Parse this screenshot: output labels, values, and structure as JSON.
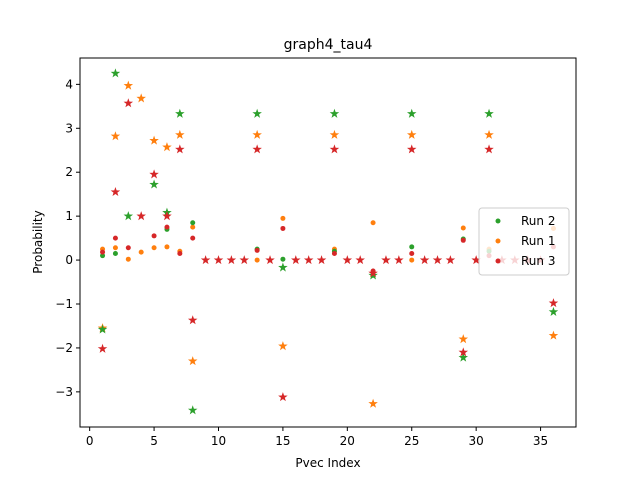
{
  "chart_data": {
    "type": "scatter",
    "title": "graph4_tau4",
    "xlabel": "Pvec Index",
    "ylabel": "Probability",
    "xlim": [
      -0.75,
      37.75
    ],
    "ylim": [
      -3.8,
      4.6
    ],
    "xticks": [
      0,
      5,
      10,
      15,
      20,
      25,
      30,
      35
    ],
    "yticks": [
      -3,
      -2,
      -1,
      0,
      1,
      2,
      3,
      4
    ],
    "xtick_labels": [
      "0",
      "5",
      "10",
      "15",
      "20",
      "25",
      "30",
      "35"
    ],
    "ytick_labels": [
      "−3",
      "−2",
      "−1",
      "0",
      "1",
      "2",
      "3",
      "4"
    ],
    "grid": false,
    "legend_position": "right",
    "series": [
      {
        "name": "Run 1",
        "color": "#ff7f0e",
        "dots": [
          [
            1,
            0.25
          ],
          [
            2,
            0.28
          ],
          [
            3,
            0.02
          ],
          [
            4,
            0.18
          ],
          [
            5,
            0.28
          ],
          [
            6,
            0.3
          ],
          [
            7,
            0.2
          ],
          [
            8,
            0.75
          ],
          [
            13,
            0.0
          ],
          [
            15,
            0.95
          ],
          [
            19,
            0.25
          ],
          [
            22,
            0.85
          ],
          [
            25,
            0.0
          ],
          [
            29,
            0.73
          ],
          [
            31,
            0.25
          ],
          [
            36,
            0.72
          ]
        ],
        "stars": [
          [
            1,
            -1.55
          ],
          [
            2,
            2.82
          ],
          [
            3,
            3.97
          ],
          [
            4,
            3.68
          ],
          [
            5,
            2.72
          ],
          [
            6,
            2.57
          ],
          [
            7,
            2.85
          ],
          [
            8,
            -2.3
          ],
          [
            13,
            2.85
          ],
          [
            15,
            -1.96
          ],
          [
            19,
            2.85
          ],
          [
            22,
            -3.27
          ],
          [
            25,
            2.85
          ],
          [
            29,
            -1.8
          ],
          [
            31,
            2.85
          ],
          [
            36,
            -1.72
          ]
        ]
      },
      {
        "name": "Run 2",
        "color": "#2ca02c",
        "dots": [
          [
            1,
            0.1
          ],
          [
            2,
            0.15
          ],
          [
            6,
            0.7
          ],
          [
            8,
            0.85
          ],
          [
            13,
            0.25
          ],
          [
            15,
            0.02
          ],
          [
            19,
            0.2
          ],
          [
            25,
            0.3
          ],
          [
            29,
            0.48
          ],
          [
            31,
            0.2
          ]
        ],
        "stars": [
          [
            1,
            -1.58
          ],
          [
            2,
            4.25
          ],
          [
            3,
            1.0
          ],
          [
            5,
            1.72
          ],
          [
            6,
            1.08
          ],
          [
            7,
            3.33
          ],
          [
            8,
            -3.42
          ],
          [
            13,
            3.33
          ],
          [
            15,
            -0.17
          ],
          [
            19,
            3.33
          ],
          [
            22,
            -0.35
          ],
          [
            25,
            3.33
          ],
          [
            29,
            -2.22
          ],
          [
            31,
            3.33
          ],
          [
            36,
            -1.18
          ]
        ]
      },
      {
        "name": "Run 3",
        "color": "#d62728",
        "dots": [
          [
            1,
            0.18
          ],
          [
            2,
            0.5
          ],
          [
            3,
            0.28
          ],
          [
            5,
            0.55
          ],
          [
            6,
            0.75
          ],
          [
            7,
            0.15
          ],
          [
            8,
            0.5
          ],
          [
            13,
            0.22
          ],
          [
            15,
            0.72
          ],
          [
            19,
            0.15
          ],
          [
            22,
            -0.25
          ],
          [
            25,
            0.15
          ],
          [
            29,
            0.45
          ],
          [
            31,
            0.1
          ],
          [
            36,
            0.3
          ]
        ],
        "stars": [
          [
            1,
            -2.02
          ],
          [
            2,
            1.55
          ],
          [
            3,
            3.57
          ],
          [
            4,
            1.0
          ],
          [
            5,
            1.95
          ],
          [
            6,
            1.0
          ],
          [
            7,
            2.52
          ],
          [
            8,
            -1.37
          ],
          [
            9,
            0
          ],
          [
            10,
            0
          ],
          [
            11,
            0
          ],
          [
            12,
            0
          ],
          [
            13,
            2.52
          ],
          [
            14,
            0
          ],
          [
            15,
            -3.12
          ],
          [
            16,
            0
          ],
          [
            17,
            0
          ],
          [
            18,
            0
          ],
          [
            19,
            2.52
          ],
          [
            20,
            0
          ],
          [
            21,
            0
          ],
          [
            22,
            -0.3
          ],
          [
            23,
            0
          ],
          [
            24,
            0
          ],
          [
            25,
            2.52
          ],
          [
            26,
            0
          ],
          [
            27,
            0
          ],
          [
            28,
            0
          ],
          [
            29,
            -2.1
          ],
          [
            30,
            0
          ],
          [
            31,
            2.52
          ],
          [
            32,
            0
          ],
          [
            33,
            0
          ],
          [
            34,
            0
          ],
          [
            35,
            0
          ],
          [
            36,
            -0.98
          ]
        ]
      }
    ],
    "legend": [
      {
        "label": "Run 2",
        "color": "#2ca02c"
      },
      {
        "label": "Run 1",
        "color": "#ff7f0e"
      },
      {
        "label": "Run 3",
        "color": "#d62728"
      }
    ]
  }
}
